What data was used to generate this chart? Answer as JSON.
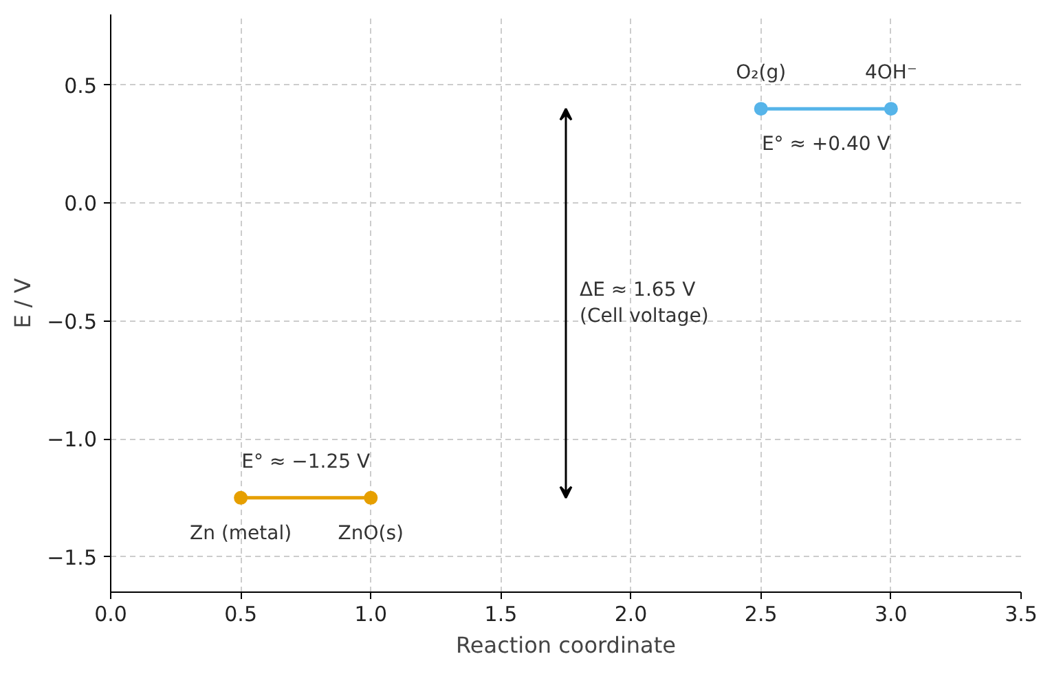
{
  "chart_data": {
    "type": "line",
    "xlabel": "Reaction coordinate",
    "ylabel": "E / V",
    "xlim": [
      0,
      3.5
    ],
    "xticks": [
      {
        "value": 0,
        "label": "0.0"
      },
      0.5,
      {
        "value": 1,
        "label": "1.0"
      },
      1.5,
      {
        "value": 2,
        "label": "2.0"
      },
      2.5,
      {
        "value": 3,
        "label": "3.0"
      },
      3.5
    ],
    "ylim": [
      -1.65,
      0.8
    ],
    "yticks": [
      {
        "value": -1.5,
        "label": "−1.5"
      },
      {
        "value": -1,
        "label": "−1.0"
      },
      {
        "value": -0.5,
        "label": "−0.5"
      },
      {
        "value": 0,
        "label": "0.0"
      },
      0.5
    ],
    "grid": true,
    "marker": "circle",
    "line_style": "solid",
    "series": [
      {
        "color": "#e69f00",
        "x": [
          0.5,
          1.0
        ],
        "values": [
          -1.25,
          -1.25
        ]
      },
      {
        "color": "#56b4e9",
        "x": [
          2.5,
          3.0
        ],
        "values": [
          0.4,
          0.4
        ]
      }
    ],
    "annotations": [
      {
        "text": "Zn (metal)",
        "x": 0.5,
        "y": -1.25
      },
      {
        "text": "ZnO(s)",
        "x": 1.0,
        "y": -1.25
      },
      {
        "text": "E° ≈ −1.25 V",
        "x": 0.75,
        "y": -1.25
      },
      {
        "text": "O₂(g)",
        "x": 2.5,
        "y": 0.4
      },
      {
        "text": "4OH⁻",
        "x": 3.0,
        "y": 0.4
      },
      {
        "text": "E° ≈ +0.40 V",
        "x": 2.75,
        "y": 0.4
      },
      "ΔE ≈ 1.65 V\n(Cell voltage)"
    ]
  }
}
